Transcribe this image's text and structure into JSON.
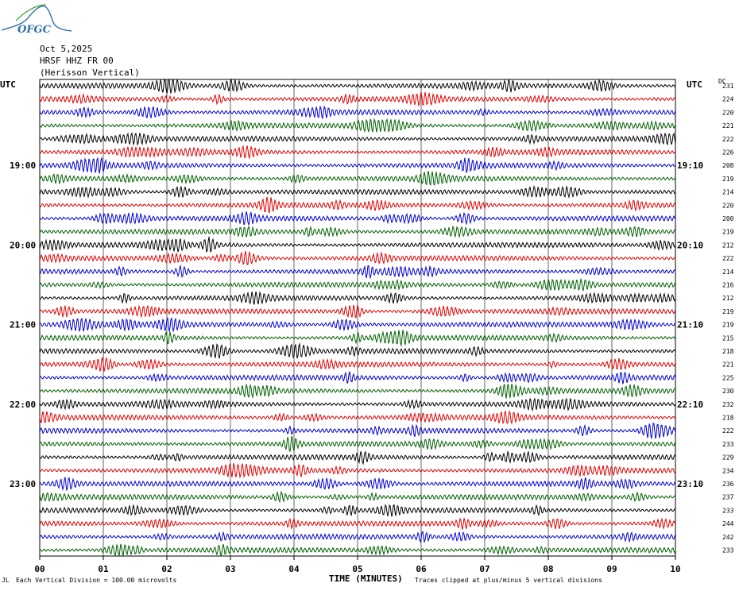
{
  "header": {
    "logo_text": "OFGC",
    "date": "Oct 5,2025",
    "station": "HRSF HHZ FR 00",
    "location": "(Herisson Vertical)"
  },
  "labels": {
    "utc_left": "UTC",
    "utc_right": "UTC",
    "dc": "DC",
    "x_axis_title": "TIME (MINUTES)",
    "footer_left": "Each Vertical Division =  100.00 microvolts",
    "footer_right": "Traces clipped at plus/minus 5 vertical divisions"
  },
  "colors": {
    "series": [
      "#000000",
      "#e00000",
      "#0000d0",
      "#006000"
    ],
    "logo": "#2f6fa8"
  },
  "chart_data": {
    "type": "line",
    "description_type": "helicorder",
    "xlim": [
      0,
      10
    ],
    "x_ticks": [
      "00",
      "01",
      "02",
      "03",
      "04",
      "05",
      "06",
      "07",
      "08",
      "09",
      "10"
    ],
    "left_time_labels": [
      {
        "row": 6,
        "label": "19:00"
      },
      {
        "row": 12,
        "label": "20:00"
      },
      {
        "row": 18,
        "label": "21:00"
      },
      {
        "row": 24,
        "label": "22:00"
      },
      {
        "row": 30,
        "label": "23:00"
      }
    ],
    "right_time_labels": [
      {
        "row": 6,
        "label": "19:10"
      },
      {
        "row": 12,
        "label": "20:10"
      },
      {
        "row": 18,
        "label": "21:10"
      },
      {
        "row": 24,
        "label": "22:10"
      },
      {
        "row": 30,
        "label": "23:10"
      }
    ],
    "dc_offsets": [
      231,
      224,
      220,
      221,
      222,
      226,
      208,
      219,
      214,
      220,
      200,
      219,
      212,
      222,
      214,
      216,
      212,
      219,
      219,
      215,
      218,
      221,
      225,
      230,
      232,
      218,
      222,
      233,
      229,
      234,
      236,
      237,
      233,
      244,
      242,
      233
    ],
    "trace_count": 36
  }
}
